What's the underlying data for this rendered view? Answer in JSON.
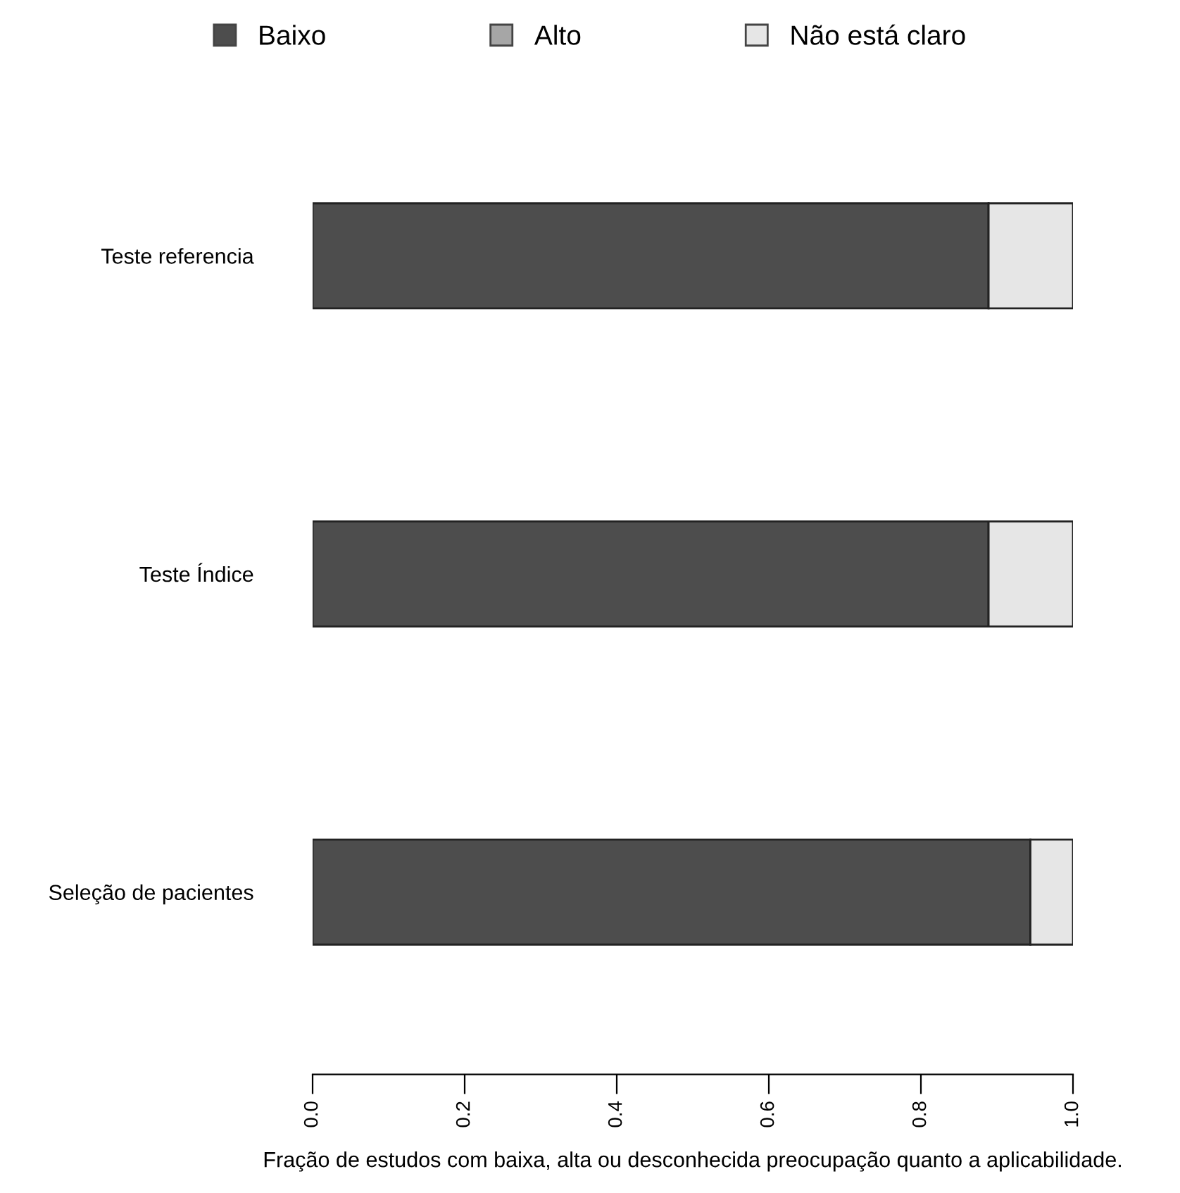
{
  "chart_data": {
    "type": "bar",
    "orientation": "horizontal",
    "stacked": true,
    "categories": [
      "Teste referencia",
      "Teste Índice",
      "Seleção de pacientes"
    ],
    "series": [
      {
        "name": "Baixo",
        "color": "#4d4d4d",
        "values": [
          0.889,
          0.889,
          0.944
        ]
      },
      {
        "name": "Alto",
        "color": "#a6a6a6",
        "values": [
          0,
          0,
          0
        ]
      },
      {
        "name": "Não está claro",
        "color": "#e6e6e6",
        "values": [
          0.111,
          0.111,
          0.056
        ]
      }
    ],
    "xlabel": "Fração de estudos com baixa, alta ou desconhecida preocupação quanto a aplicabilidade.",
    "xlim": [
      0,
      1
    ],
    "xticks": [
      {
        "value": 0,
        "label": "0.0"
      },
      0.2,
      0.4,
      0.6,
      0.8,
      {
        "value": 1,
        "label": "1.0"
      }
    ],
    "legend": "top",
    "grid": false
  }
}
